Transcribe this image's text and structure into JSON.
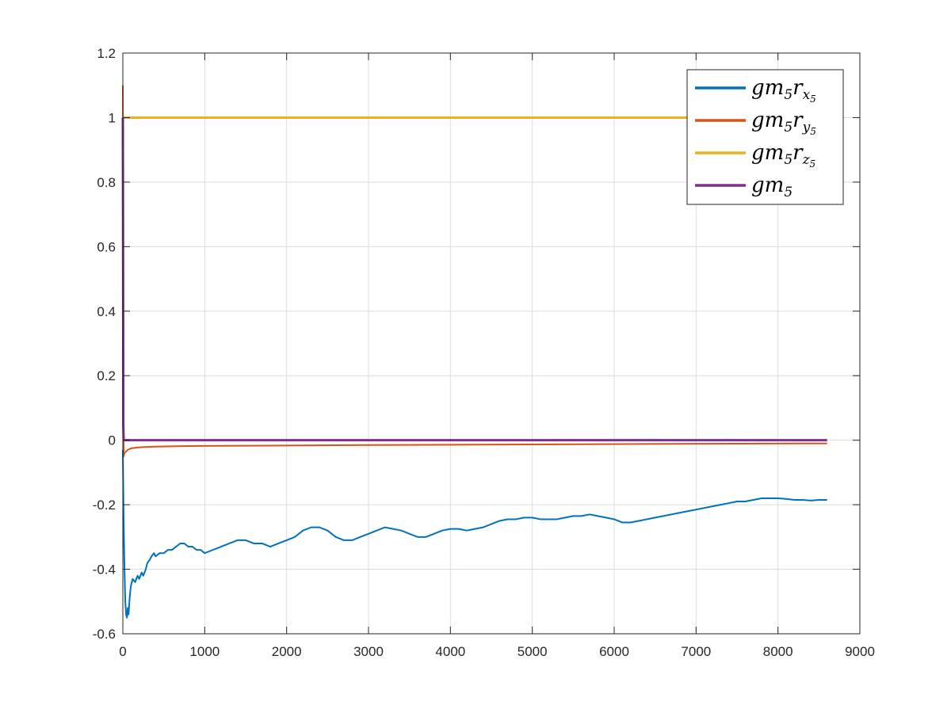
{
  "chart_data": {
    "type": "line",
    "title": "",
    "xlabel": "",
    "ylabel": "",
    "xlim": [
      0,
      9000
    ],
    "ylim": [
      -0.6,
      1.2
    ],
    "xticks": [
      0,
      1000,
      2000,
      3000,
      4000,
      5000,
      6000,
      7000,
      8000,
      9000
    ],
    "xtick_labels": [
      "0",
      "1000",
      "2000",
      "3000",
      "4000",
      "5000",
      "6000",
      "7000",
      "8000",
      "9000"
    ],
    "yticks": [
      -0.6,
      -0.4,
      -0.2,
      0,
      0.2,
      0.4,
      0.6,
      0.8,
      1,
      1.2
    ],
    "ytick_labels": [
      "-0.6",
      "-0.4",
      "-0.2",
      "0",
      "0.2",
      "0.4",
      "0.6",
      "0.8",
      "1",
      "1.2"
    ],
    "grid": true,
    "legend_position": "top-right",
    "series": [
      {
        "key": "gm5rx5",
        "legend_base": "gm",
        "legend_sub1": "5",
        "legend_mid": "r",
        "legend_sub2": "x",
        "legend_sub3": "5",
        "color": "#0072BD",
        "x": [
          0,
          10,
          20,
          30,
          40,
          50,
          60,
          70,
          80,
          90,
          100,
          120,
          150,
          180,
          200,
          230,
          250,
          280,
          300,
          330,
          350,
          380,
          400,
          450,
          500,
          550,
          600,
          650,
          700,
          750,
          800,
          850,
          900,
          950,
          1000,
          1100,
          1200,
          1300,
          1400,
          1500,
          1600,
          1700,
          1800,
          1900,
          2000,
          2100,
          2200,
          2300,
          2400,
          2500,
          2600,
          2700,
          2800,
          2900,
          3000,
          3100,
          3200,
          3300,
          3400,
          3500,
          3600,
          3700,
          3800,
          3900,
          4000,
          4100,
          4200,
          4300,
          4400,
          4500,
          4600,
          4700,
          4800,
          4900,
          5000,
          5100,
          5200,
          5300,
          5400,
          5500,
          5600,
          5700,
          5800,
          5900,
          6000,
          6100,
          6200,
          6300,
          6400,
          6500,
          6600,
          6700,
          6800,
          6900,
          7000,
          7100,
          7200,
          7300,
          7400,
          7500,
          7600,
          7700,
          7800,
          7900,
          8000,
          8100,
          8200,
          8300,
          8400,
          8500,
          8600
        ],
        "y": [
          -0.03,
          -0.25,
          -0.4,
          -0.5,
          -0.54,
          -0.55,
          -0.52,
          -0.54,
          -0.5,
          -0.47,
          -0.45,
          -0.43,
          -0.44,
          -0.42,
          -0.43,
          -0.41,
          -0.42,
          -0.4,
          -0.38,
          -0.37,
          -0.36,
          -0.35,
          -0.36,
          -0.35,
          -0.35,
          -0.34,
          -0.34,
          -0.33,
          -0.32,
          -0.32,
          -0.33,
          -0.33,
          -0.34,
          -0.34,
          -0.35,
          -0.34,
          -0.33,
          -0.32,
          -0.31,
          -0.31,
          -0.32,
          -0.32,
          -0.33,
          -0.32,
          -0.31,
          -0.3,
          -0.28,
          -0.27,
          -0.27,
          -0.28,
          -0.3,
          -0.31,
          -0.31,
          -0.3,
          -0.29,
          -0.28,
          -0.27,
          -0.275,
          -0.28,
          -0.29,
          -0.3,
          -0.3,
          -0.29,
          -0.28,
          -0.275,
          -0.275,
          -0.28,
          -0.275,
          -0.27,
          -0.26,
          -0.25,
          -0.245,
          -0.245,
          -0.24,
          -0.24,
          -0.245,
          -0.245,
          -0.245,
          -0.24,
          -0.235,
          -0.235,
          -0.23,
          -0.235,
          -0.24,
          -0.245,
          -0.255,
          -0.255,
          -0.25,
          -0.245,
          -0.24,
          -0.235,
          -0.23,
          -0.225,
          -0.22,
          -0.215,
          -0.21,
          -0.205,
          -0.2,
          -0.195,
          -0.19,
          -0.19,
          -0.185,
          -0.18,
          -0.18,
          -0.18,
          -0.182,
          -0.185,
          -0.185,
          -0.187,
          -0.185,
          -0.185
        ]
      },
      {
        "key": "gm5ry5",
        "legend_base": "gm",
        "legend_sub1": "5",
        "legend_mid": "r",
        "legend_sub2": "y",
        "legend_sub3": "5",
        "color": "#D95319",
        "x": [
          0,
          5,
          10,
          20,
          40,
          60,
          100,
          200,
          400,
          800,
          1500,
          3000,
          5000,
          7000,
          8600
        ],
        "y": [
          1.1,
          0.5,
          -0.05,
          -0.04,
          -0.035,
          -0.03,
          -0.025,
          -0.022,
          -0.02,
          -0.018,
          -0.017,
          -0.015,
          -0.013,
          -0.011,
          -0.01
        ]
      },
      {
        "key": "gm5rz5",
        "legend_base": "gm",
        "legend_sub1": "5",
        "legend_mid": "r",
        "legend_sub2": "z",
        "legend_sub3": "5",
        "color": "#EDB120",
        "x": [
          0,
          8600
        ],
        "y": [
          1,
          1
        ]
      },
      {
        "key": "gm5",
        "legend_base": "gm",
        "legend_sub1": "5",
        "legend_mid": "",
        "legend_sub2": "",
        "legend_sub3": "",
        "color": "#7E2F8E",
        "x": [
          0,
          3,
          6,
          10,
          20,
          8600
        ],
        "y": [
          1.0,
          0.6,
          0.05,
          0.0,
          0.0,
          0.0
        ]
      }
    ]
  }
}
